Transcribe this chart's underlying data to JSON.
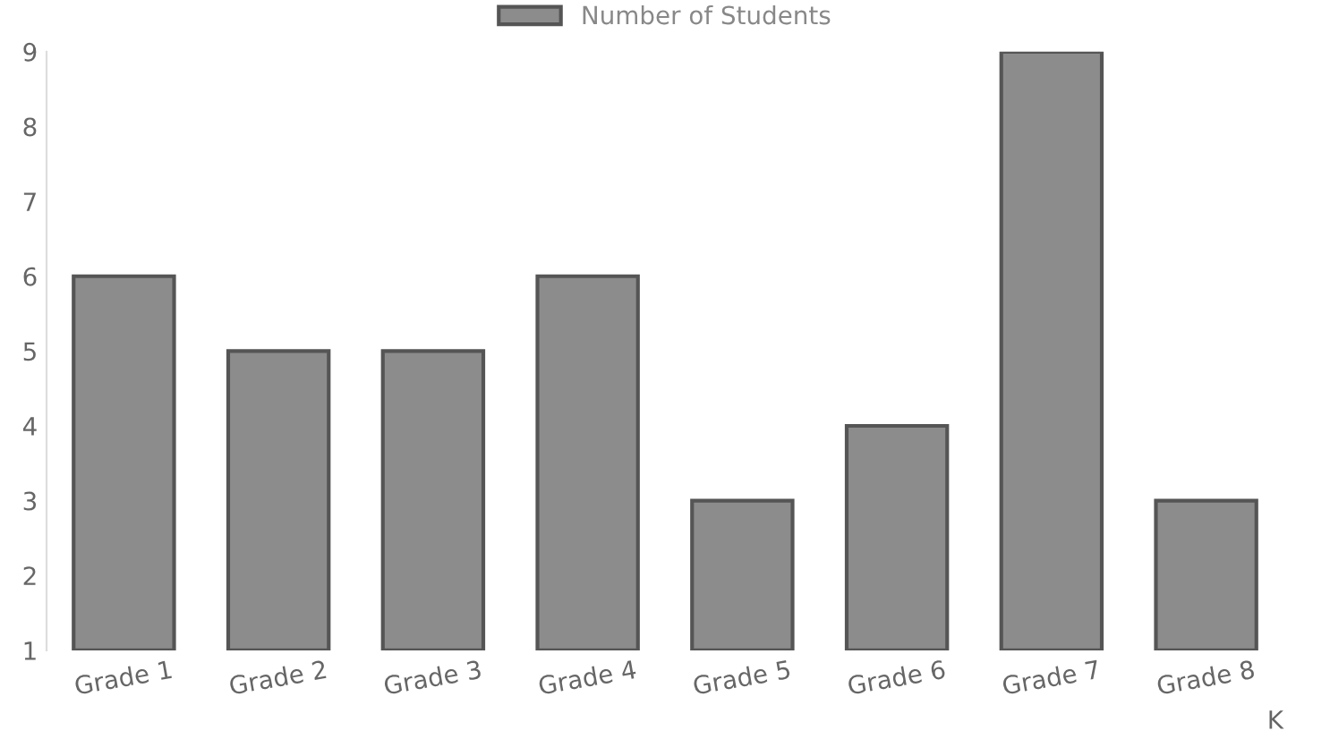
{
  "chart_data": {
    "type": "bar",
    "xlabel": "K",
    "categories": [
      "Grade 1",
      "Grade 2",
      "Grade 3",
      "Grade 4",
      "Grade 5",
      "Grade 6",
      "Grade 7",
      "Grade 8"
    ],
    "series": [
      {
        "name": "Number of Students",
        "color": "#8c8c8c",
        "values": [
          6,
          5,
          5,
          6,
          3,
          4,
          9,
          3
        ]
      }
    ],
    "ylim": [
      1,
      9
    ],
    "yticks": [
      1,
      2,
      3,
      4,
      5,
      6,
      7,
      8,
      9
    ],
    "grid": false,
    "legend": "top"
  }
}
